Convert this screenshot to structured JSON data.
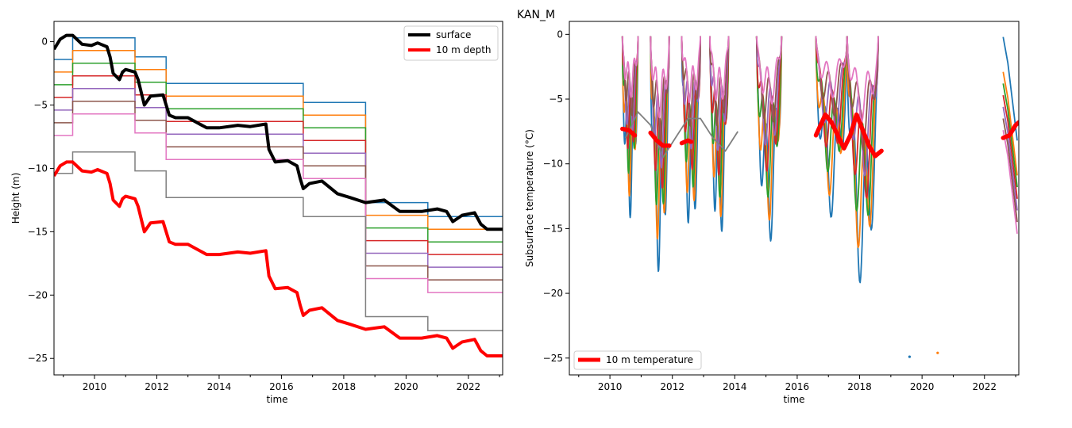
{
  "figure": {
    "suptitle": "KAN_M"
  },
  "chart_data": [
    {
      "type": "line",
      "xlabel": "time",
      "ylabel": "Height (m)",
      "xlim": [
        2008.7,
        2023.1
      ],
      "ylim": [
        -26.3,
        1.6
      ],
      "xticks": [
        2010,
        2012,
        2014,
        2016,
        2018,
        2020,
        2022
      ],
      "yticks": [
        0,
        -5,
        -10,
        -15,
        -20,
        -25
      ],
      "legend": {
        "placement": "top-right",
        "entries": [
          "surface",
          "10 m depth"
        ]
      },
      "colors": {
        "surface": "#000000",
        "depth10": "#ff0000",
        "layers": [
          "#1f77b4",
          "#ff7f0e",
          "#2ca02c",
          "#d62728",
          "#9467bd",
          "#8c564b",
          "#e377c2",
          "#7f7f7f"
        ]
      },
      "installations": {
        "x": [
          2008.7,
          2009.3,
          2010.4,
          2011.3,
          2012.3,
          2016.7,
          2018.7,
          2020.7,
          2023.1
        ],
        "layer_heights": [
          [
            -1.4,
            0.3,
            0.3,
            -1.2,
            -3.3,
            -4.8,
            -12.7,
            -13.8,
            -14.8
          ],
          [
            -2.4,
            -0.7,
            -0.7,
            -2.2,
            -4.3,
            -5.8,
            -13.7,
            -14.8,
            -15.9
          ],
          [
            -3.4,
            -1.7,
            -1.7,
            -3.2,
            -5.3,
            -6.8,
            -14.7,
            -15.8,
            -16.9
          ],
          [
            -4.4,
            -2.7,
            -2.7,
            -4.2,
            -6.3,
            -7.8,
            -15.7,
            -16.8,
            -17.9
          ],
          [
            -5.4,
            -3.7,
            -3.7,
            -5.2,
            -7.3,
            -8.8,
            -16.7,
            -17.8,
            -18.9
          ],
          [
            -6.4,
            -4.7,
            -4.7,
            -6.2,
            -8.3,
            -9.8,
            -17.7,
            -18.8,
            -19.9
          ],
          [
            -7.4,
            -5.7,
            -5.7,
            -7.2,
            -9.3,
            -10.8,
            -18.7,
            -19.8,
            -20.9
          ],
          [
            -10.4,
            -8.7,
            -8.7,
            -10.2,
            -12.3,
            -13.8,
            -21.7,
            -22.8,
            -23.9
          ]
        ]
      },
      "series": [
        {
          "name": "surface",
          "x": [
            2008.7,
            2008.9,
            2009.1,
            2009.3,
            2009.6,
            2009.9,
            2010.1,
            2010.4,
            2010.5,
            2010.6,
            2010.8,
            2010.9,
            2011.0,
            2011.3,
            2011.4,
            2011.6,
            2011.8,
            2012.2,
            2012.4,
            2012.6,
            2013.0,
            2013.6,
            2014.0,
            2014.6,
            2015.0,
            2015.5,
            2015.6,
            2015.8,
            2016.2,
            2016.5,
            2016.6,
            2016.7,
            2016.9,
            2017.3,
            2017.8,
            2018.2,
            2018.7,
            2019.3,
            2019.8,
            2020.5,
            2021.0,
            2021.3,
            2021.5,
            2021.8,
            2022.2,
            2022.4,
            2022.6,
            2023.1
          ],
          "y": [
            -0.6,
            0.2,
            0.5,
            0.5,
            -0.2,
            -0.3,
            -0.1,
            -0.4,
            -1.2,
            -2.5,
            -3.0,
            -2.4,
            -2.2,
            -2.4,
            -3.0,
            -5.0,
            -4.3,
            -4.2,
            -5.8,
            -6.0,
            -6.0,
            -6.8,
            -6.8,
            -6.6,
            -6.7,
            -6.5,
            -8.5,
            -9.5,
            -9.4,
            -9.8,
            -10.8,
            -11.6,
            -11.2,
            -11.0,
            -12.0,
            -12.3,
            -12.7,
            -12.5,
            -13.4,
            -13.4,
            -13.2,
            -13.4,
            -14.2,
            -13.7,
            -13.5,
            -14.4,
            -14.8,
            -14.8
          ]
        },
        {
          "name": "10 m depth",
          "x": [
            2008.7,
            2008.9,
            2009.1,
            2009.3,
            2009.6,
            2009.9,
            2010.1,
            2010.4,
            2010.5,
            2010.6,
            2010.8,
            2010.9,
            2011.0,
            2011.3,
            2011.4,
            2011.6,
            2011.8,
            2012.2,
            2012.4,
            2012.6,
            2013.0,
            2013.6,
            2014.0,
            2014.6,
            2015.0,
            2015.5,
            2015.6,
            2015.8,
            2016.2,
            2016.5,
            2016.6,
            2016.7,
            2016.9,
            2017.3,
            2017.8,
            2018.2,
            2018.7,
            2019.3,
            2019.8,
            2020.5,
            2021.0,
            2021.3,
            2021.5,
            2021.8,
            2022.2,
            2022.4,
            2022.6,
            2023.1
          ],
          "y": [
            -10.6,
            -9.8,
            -9.5,
            -9.5,
            -10.2,
            -10.3,
            -10.1,
            -10.4,
            -11.2,
            -12.5,
            -13.0,
            -12.4,
            -12.2,
            -12.4,
            -13.0,
            -15.0,
            -14.3,
            -14.2,
            -15.8,
            -16.0,
            -16.0,
            -16.8,
            -16.8,
            -16.6,
            -16.7,
            -16.5,
            -18.5,
            -19.5,
            -19.4,
            -19.8,
            -20.8,
            -21.6,
            -21.2,
            -21.0,
            -22.0,
            -22.3,
            -22.7,
            -22.5,
            -23.4,
            -23.4,
            -23.2,
            -23.4,
            -24.2,
            -23.7,
            -23.5,
            -24.4,
            -24.8,
            -24.8
          ]
        }
      ]
    },
    {
      "type": "line",
      "xlabel": "time",
      "ylabel": "Subsurface temperature (°C)",
      "xlim": [
        2008.7,
        2023.1
      ],
      "ylim": [
        -26.3,
        1.0
      ],
      "xticks": [
        2010,
        2012,
        2014,
        2016,
        2018,
        2020,
        2022
      ],
      "yticks": [
        0,
        -5,
        -10,
        -15,
        -20,
        -25
      ],
      "legend": {
        "placement": "bottom-left",
        "entries": [
          "10 m temperature"
        ]
      },
      "colors": {
        "t10": "#ff0000",
        "layers": [
          "#1f77b4",
          "#ff7f0e",
          "#2ca02c",
          "#d62728",
          "#9467bd",
          "#8c564b",
          "#e377c2",
          "#7f7f7f"
        ]
      },
      "seasons": [
        {
          "start": 2010.4,
          "end": 2010.9,
          "min": -14.0
        },
        {
          "start": 2011.3,
          "end": 2011.9,
          "min": -18.5
        },
        {
          "start": 2012.3,
          "end": 2012.9,
          "min": -15.5
        },
        {
          "start": 2013.2,
          "end": 2013.8,
          "min": -16.0
        },
        {
          "start": 2014.7,
          "end": 2015.5,
          "min": -16.0
        },
        {
          "start": 2016.6,
          "end": 2017.6,
          "min": -14.0
        },
        {
          "start": 2017.6,
          "end": 2018.6,
          "min": -19.5
        }
      ],
      "deep_layer": {
        "x": [
          2010.5,
          2010.9,
          2011.3,
          2011.7,
          2012.1,
          2012.5,
          2012.9,
          2013.3,
          2013.7,
          2014.1
        ],
        "y": [
          -8.0,
          -6.0,
          -7.0,
          -9.5,
          -8.0,
          -6.5,
          -6.5,
          -8.0,
          -9.0,
          -7.5
        ]
      },
      "late_layers": {
        "x": [
          2022.6,
          2022.75,
          2022.9,
          2023.05
        ],
        "y": [
          -2.0,
          -4.0,
          -7.0,
          -10.0
        ]
      },
      "stray_points": [
        {
          "x": 2019.6,
          "y": -24.9
        },
        {
          "x": 2020.5,
          "y": -24.6
        }
      ],
      "series": [
        {
          "name": "10 m temperature",
          "segments": [
            {
              "x": [
                2010.4,
                2010.6,
                2010.8
              ],
              "y": [
                -7.3,
                -7.4,
                -7.8
              ]
            },
            {
              "x": [
                2011.3,
                2011.5,
                2011.7,
                2011.9
              ],
              "y": [
                -7.6,
                -8.2,
                -8.6,
                -8.6
              ]
            },
            {
              "x": [
                2012.3,
                2012.5,
                2012.6
              ],
              "y": [
                -8.4,
                -8.2,
                -8.3
              ]
            },
            {
              "x": [
                2016.6,
                2016.9,
                2017.1,
                2017.3,
                2017.5,
                2017.7,
                2017.9,
                2018.1,
                2018.3,
                2018.5,
                2018.7
              ],
              "y": [
                -7.8,
                -6.2,
                -6.8,
                -7.8,
                -8.8,
                -7.8,
                -6.2,
                -7.4,
                -8.6,
                -9.4,
                -9.0
              ]
            },
            {
              "x": [
                2022.6,
                2022.8,
                2023.0,
                2023.1
              ],
              "y": [
                -8.0,
                -7.8,
                -7.0,
                -6.8
              ]
            }
          ]
        }
      ]
    }
  ]
}
